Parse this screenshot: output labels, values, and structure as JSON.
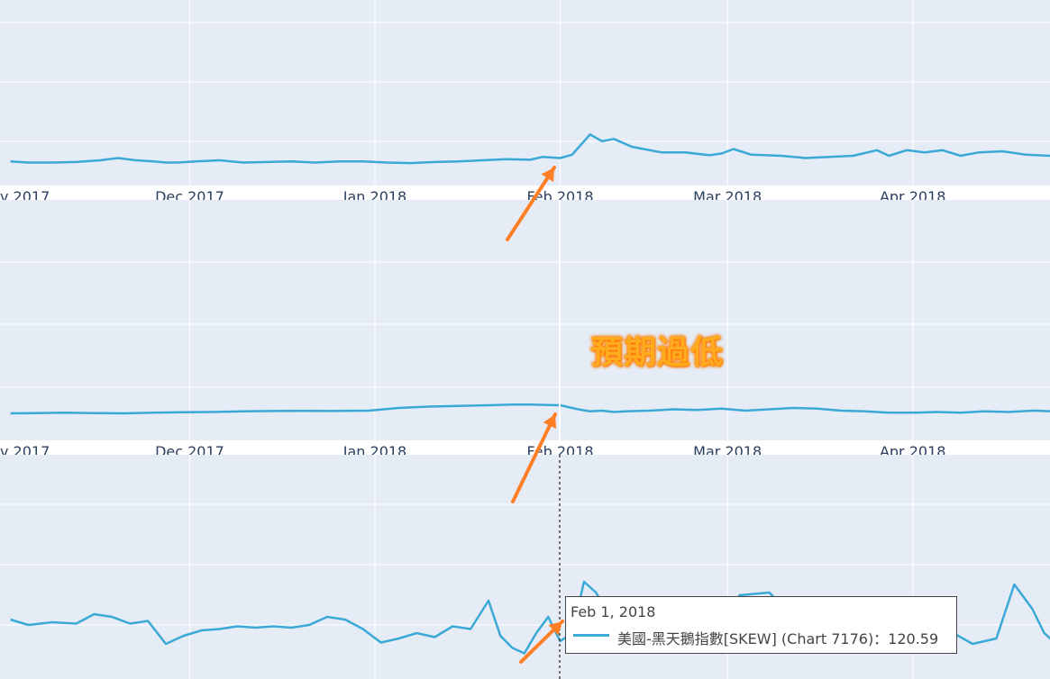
{
  "annotation": "預期過低",
  "tooltip": {
    "date": "Feb 1, 2018",
    "entry": "美國-黑天鵝指數[SKEW] (Chart 7176)：120.59"
  },
  "colors": {
    "line": "#3ba9d6",
    "plot_bg": "#e5ecf6",
    "grid": "#ffffff",
    "arrow": "#ff7f27"
  },
  "chart_data": [
    {
      "type": "line",
      "xlabel": "",
      "ylabel": "",
      "xlim": [
        "2017-11-01",
        "2018-04-30"
      ],
      "x_ticks": [
        "Dec 2017",
        "Jan 2018",
        "Feb 2018",
        "Mar 2018",
        "Apr 2018"
      ],
      "x_tick_dates": [
        "2017-12-01",
        "2018-01-01",
        "2018-02-01",
        "2018-03-01",
        "2018-04-01"
      ],
      "partial_tick_label": "v 2017",
      "grid": true,
      "legend": "none",
      "ylim": [
        0,
        4
      ],
      "series": [
        {
          "x": [
            "2017-11-01",
            "2017-11-04",
            "2017-11-08",
            "2017-11-12",
            "2017-11-16",
            "2017-11-19",
            "2017-11-22",
            "2017-11-25",
            "2017-11-27",
            "2017-11-29",
            "2017-12-02",
            "2017-12-06",
            "2017-12-10",
            "2017-12-14",
            "2017-12-18",
            "2017-12-22",
            "2017-12-26",
            "2017-12-30",
            "2018-01-03",
            "2018-01-07",
            "2018-01-11",
            "2018-01-15",
            "2018-01-19",
            "2018-01-23",
            "2018-01-27",
            "2018-01-29",
            "2018-02-01",
            "2018-02-03",
            "2018-02-06",
            "2018-02-08",
            "2018-02-10",
            "2018-02-13",
            "2018-02-18",
            "2018-02-22",
            "2018-02-26",
            "2018-02-28",
            "2018-03-02",
            "2018-03-05",
            "2018-03-10",
            "2018-03-14",
            "2018-03-18",
            "2018-03-22",
            "2018-03-26",
            "2018-03-28",
            "2018-03-31",
            "2018-04-03",
            "2018-04-06",
            "2018-04-09",
            "2018-04-12",
            "2018-04-16",
            "2018-04-20",
            "2018-04-24",
            "2018-04-28",
            "2018-04-30"
          ],
          "y": [
            1.5,
            1.4,
            1.4,
            1.45,
            1.6,
            1.8,
            1.6,
            1.5,
            1.4,
            1.4,
            1.5,
            1.6,
            1.4,
            1.45,
            1.5,
            1.4,
            1.5,
            1.5,
            1.4,
            1.35,
            1.45,
            1.5,
            1.6,
            1.7,
            1.65,
            1.9,
            1.8,
            2.1,
            3.9,
            3.3,
            3.5,
            2.8,
            2.3,
            2.3,
            2.05,
            2.2,
            2.6,
            2.1,
            2.0,
            1.8,
            1.9,
            2.0,
            2.5,
            2.0,
            2.5,
            2.3,
            2.5,
            2.0,
            2.3,
            2.4,
            2.1,
            2.0,
            2.1,
            2.2
          ]
        }
      ]
    },
    {
      "type": "line",
      "xlabel": "",
      "ylabel": "",
      "xlim": [
        "2017-11-01",
        "2018-04-30"
      ],
      "x_ticks": [
        "Dec 2017",
        "Jan 2018",
        "Feb 2018",
        "Mar 2018",
        "Apr 2018"
      ],
      "x_tick_dates": [
        "2017-12-01",
        "2018-01-01",
        "2018-02-01",
        "2018-03-01",
        "2018-04-01"
      ],
      "partial_tick_label": "v 2017",
      "grid": true,
      "legend": "none",
      "ylim": [
        0,
        4
      ],
      "series": [
        {
          "x": [
            "2017-11-01",
            "2017-11-05",
            "2017-11-10",
            "2017-11-15",
            "2017-11-20",
            "2017-11-25",
            "2017-11-30",
            "2017-12-05",
            "2017-12-10",
            "2017-12-15",
            "2017-12-20",
            "2017-12-25",
            "2017-12-31",
            "2018-01-05",
            "2018-01-10",
            "2018-01-15",
            "2018-01-20",
            "2018-01-24",
            "2018-01-27",
            "2018-01-30",
            "2018-02-01",
            "2018-02-04",
            "2018-02-06",
            "2018-02-08",
            "2018-02-10",
            "2018-02-12",
            "2018-02-16",
            "2018-02-20",
            "2018-02-24",
            "2018-02-28",
            "2018-03-04",
            "2018-03-08",
            "2018-03-12",
            "2018-03-16",
            "2018-03-20",
            "2018-03-24",
            "2018-03-28",
            "2018-04-01",
            "2018-04-05",
            "2018-04-09",
            "2018-04-13",
            "2018-04-17",
            "2018-04-21",
            "2018-04-25",
            "2018-04-30"
          ],
          "y": [
            1.8,
            1.82,
            1.85,
            1.82,
            1.8,
            1.85,
            1.88,
            1.9,
            1.95,
            1.97,
            1.98,
            1.97,
            2.0,
            2.2,
            2.3,
            2.35,
            2.4,
            2.45,
            2.45,
            2.42,
            2.4,
            2.1,
            1.95,
            2.0,
            1.9,
            1.95,
            2.0,
            2.1,
            2.05,
            2.15,
            2.0,
            2.1,
            2.2,
            2.15,
            2.0,
            1.95,
            1.85,
            1.85,
            1.9,
            1.85,
            1.95,
            1.9,
            2.0,
            1.95,
            1.9
          ]
        }
      ]
    },
    {
      "type": "line",
      "xlabel": "",
      "ylabel": "",
      "xlim": [
        "2017-11-01",
        "2018-04-30"
      ],
      "grid": true,
      "legend": "none",
      "ylim": [
        0,
        4
      ],
      "series": [
        {
          "name": "美國-黑天鵝指數[SKEW] (Chart 7176)",
          "x": [
            "2017-11-01",
            "2017-11-04",
            "2017-11-08",
            "2017-11-12",
            "2017-11-15",
            "2017-11-18",
            "2017-11-21",
            "2017-11-24",
            "2017-11-27",
            "2017-11-30",
            "2017-12-03",
            "2017-12-06",
            "2017-12-09",
            "2017-12-12",
            "2017-12-15",
            "2017-12-18",
            "2017-12-21",
            "2017-12-24",
            "2017-12-27",
            "2017-12-30",
            "2018-01-02",
            "2018-01-05",
            "2018-01-08",
            "2018-01-11",
            "2018-01-14",
            "2018-01-17",
            "2018-01-20",
            "2018-01-22",
            "2018-01-24",
            "2018-01-26",
            "2018-01-28",
            "2018-01-30",
            "2018-02-01",
            "2018-02-03",
            "2018-02-05",
            "2018-02-07",
            "2018-02-09",
            "2018-02-11",
            "2018-02-13",
            "2018-02-16",
            "2018-02-19",
            "2018-02-22",
            "2018-02-25",
            "2018-02-28",
            "2018-03-03",
            "2018-03-08",
            "2018-03-13",
            "2018-03-18",
            "2018-03-22",
            "2018-03-26",
            "2018-03-30",
            "2018-04-03",
            "2018-04-07",
            "2018-04-11",
            "2018-04-15",
            "2018-04-18",
            "2018-04-21",
            "2018-04-23",
            "2018-04-25",
            "2018-04-27",
            "2018-04-30"
          ],
          "y": [
            2.1,
            1.9,
            2.0,
            1.95,
            2.3,
            2.2,
            1.95,
            2.05,
            1.2,
            1.5,
            1.7,
            1.75,
            1.85,
            1.8,
            1.85,
            1.8,
            1.9,
            2.2,
            2.1,
            1.75,
            1.25,
            1.4,
            1.6,
            1.45,
            1.85,
            1.75,
            2.8,
            1.5,
            1.05,
            0.85,
            1.6,
            2.2,
            1.3,
            1.6,
            3.5,
            3.1,
            2.3,
            2.7,
            2.5,
            2.1,
            2.6,
            2.3,
            2.0,
            1.3,
            3.0,
            3.1,
            1.95,
            1.8,
            1.5,
            1.2,
            1.1,
            1.05,
            1.7,
            1.2,
            1.4,
            3.4,
            2.5,
            1.6,
            1.2,
            0.95,
            1.0
          ]
        }
      ]
    }
  ]
}
